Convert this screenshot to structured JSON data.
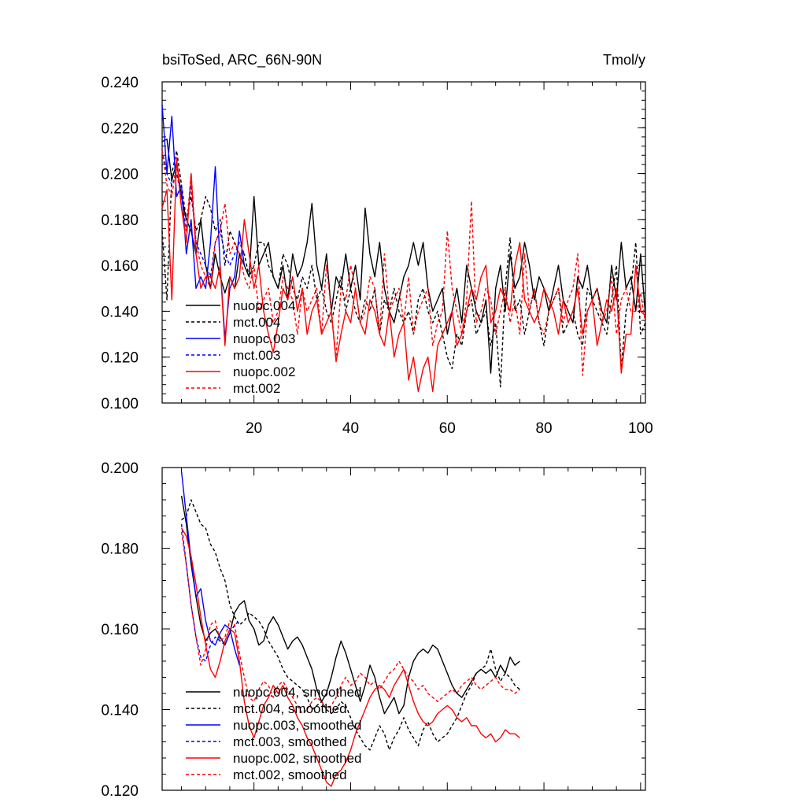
{
  "chart_data": [
    {
      "type": "line",
      "title_left": "bsiToSed, ARC_66N-90N",
      "title_right": "Tmol/y",
      "xlabel": "",
      "ylabel": "",
      "xlim": [
        1,
        101
      ],
      "ylim": [
        0.1,
        0.24
      ],
      "x_ticks": [
        20,
        40,
        60,
        80,
        100
      ],
      "x_tick_labels": [
        "20",
        "40",
        "60",
        "80",
        "100"
      ],
      "y_ticks": [
        0.1,
        0.12,
        0.14,
        0.16,
        0.18,
        0.2,
        0.22,
        0.24
      ],
      "y_tick_labels": [
        "0.100",
        "0.120",
        "0.140",
        "0.160",
        "0.180",
        "0.200",
        "0.220",
        "0.240"
      ],
      "legend_position": "bottom-left",
      "series": [
        {
          "name": "nuopc.004",
          "color": "#000000",
          "dash": "solid",
          "x_start": 1,
          "values": [
            0.214,
            0.215,
            0.197,
            0.205,
            0.19,
            0.18,
            0.175,
            0.165,
            0.18,
            0.16,
            0.15,
            0.165,
            0.155,
            0.148,
            0.155,
            0.15,
            0.165,
            0.16,
            0.155,
            0.19,
            0.16,
            0.165,
            0.17,
            0.155,
            0.15,
            0.16,
            0.145,
            0.165,
            0.155,
            0.16,
            0.17,
            0.187,
            0.16,
            0.15,
            0.165,
            0.14,
            0.155,
            0.15,
            0.165,
            0.15,
            0.16,
            0.145,
            0.185,
            0.165,
            0.155,
            0.17,
            0.15,
            0.14,
            0.135,
            0.145,
            0.155,
            0.16,
            0.17,
            0.16,
            0.17,
            0.15,
            0.14,
            0.145,
            0.15,
            0.13,
            0.14,
            0.15,
            0.135,
            0.16,
            0.15,
            0.14,
            0.135,
            0.145,
            0.113,
            0.15,
            0.16,
            0.14,
            0.165,
            0.15,
            0.155,
            0.17,
            0.16,
            0.145,
            0.155,
            0.15,
            0.14,
            0.15,
            0.16,
            0.145,
            0.14,
            0.135,
            0.155,
            0.15,
            0.16,
            0.145,
            0.15,
            0.14,
            0.135,
            0.16,
            0.145,
            0.17,
            0.15,
            0.155,
            0.14,
            0.165,
            0.138
          ]
        },
        {
          "name": "mct.004",
          "color": "#000000",
          "dash": "dashed",
          "x_start": 1,
          "values": [
            0.175,
            0.145,
            0.2,
            0.21,
            0.195,
            0.18,
            0.19,
            0.175,
            0.18,
            0.19,
            0.185,
            0.175,
            0.18,
            0.16,
            0.175,
            0.17,
            0.165,
            0.165,
            0.155,
            0.16,
            0.17,
            0.17,
            0.16,
            0.155,
            0.15,
            0.165,
            0.16,
            0.15,
            0.145,
            0.155,
            0.15,
            0.16,
            0.145,
            0.15,
            0.14,
            0.135,
            0.145,
            0.155,
            0.14,
            0.15,
            0.14,
            0.135,
            0.145,
            0.14,
            0.15,
            0.13,
            0.145,
            0.14,
            0.15,
            0.14,
            0.135,
            0.14,
            0.13,
            0.145,
            0.15,
            0.14,
            0.135,
            0.14,
            0.13,
            0.12,
            0.115,
            0.13,
            0.125,
            0.14,
            0.145,
            0.13,
            0.135,
            0.14,
            0.125,
            0.135,
            0.107,
            0.15,
            0.172,
            0.14,
            0.145,
            0.13,
            0.14,
            0.15,
            0.135,
            0.125,
            0.14,
            0.145,
            0.15,
            0.13,
            0.135,
            0.14,
            0.13,
            0.125,
            0.15,
            0.145,
            0.14,
            0.135,
            0.13,
            0.145,
            0.16,
            0.115,
            0.14,
            0.15,
            0.17,
            0.13,
            0.135
          ]
        },
        {
          "name": "nuopc.003",
          "color": "#0000ff",
          "dash": "solid",
          "x_start": 1,
          "values": [
            0.23,
            0.2,
            0.225,
            0.19,
            0.195,
            0.165,
            0.18,
            0.15,
            0.155,
            0.15,
            0.17,
            0.203,
            0.16,
            0.128,
            0.15,
            0.155,
            0.175,
            0.16
          ]
        },
        {
          "name": "mct.003",
          "color": "#0000ff",
          "dash": "dashed",
          "x_start": 1,
          "values": [
            0.21,
            0.2,
            0.195,
            0.2,
            0.19,
            0.175,
            0.195,
            0.17,
            0.165,
            0.16,
            0.155,
            0.17,
            0.175,
            0.165,
            0.16,
            0.165,
            0.17,
            0.165
          ]
        },
        {
          "name": "nuopc.002",
          "color": "#ff0000",
          "dash": "solid",
          "x_start": 1,
          "values": [
            0.185,
            0.193,
            0.145,
            0.207,
            0.185,
            0.17,
            0.2,
            0.165,
            0.15,
            0.155,
            0.155,
            0.15,
            0.16,
            0.125,
            0.155,
            0.15,
            0.155,
            0.18,
            0.165,
            0.15,
            0.16,
            0.14,
            0.13,
            0.122,
            0.135,
            0.15,
            0.145,
            0.155,
            0.14,
            0.15,
            0.13,
            0.14,
            0.145,
            0.13,
            0.135,
            0.14,
            0.118,
            0.13,
            0.14,
            0.135,
            0.15,
            0.135,
            0.13,
            0.145,
            0.14,
            0.13,
            0.125,
            0.14,
            0.12,
            0.13,
            0.135,
            0.11,
            0.12,
            0.105,
            0.115,
            0.12,
            0.105,
            0.125,
            0.13,
            0.135,
            0.14,
            0.125,
            0.13,
            0.14,
            0.15,
            0.145,
            0.155,
            0.16,
            0.135,
            0.14,
            0.15,
            0.145,
            0.14,
            0.16,
            0.17,
            0.145,
            0.14,
            0.135,
            0.14,
            0.15,
            0.145,
            0.14,
            0.13,
            0.145,
            0.135,
            0.14,
            0.15,
            0.13,
            0.14,
            0.145,
            0.125,
            0.135,
            0.145,
            0.14,
            0.15,
            0.113,
            0.13,
            0.13,
            0.16,
            0.14,
            0.138
          ]
        },
        {
          "name": "mct.002",
          "color": "#ff0000",
          "dash": "dashed",
          "x_start": 1,
          "values": [
            0.21,
            0.195,
            0.19,
            0.205,
            0.185,
            0.175,
            0.2,
            0.17,
            0.16,
            0.155,
            0.15,
            0.17,
            0.175,
            0.187,
            0.165,
            0.17,
            0.165,
            0.155,
            0.15,
            0.16,
            0.14,
            0.145,
            0.15,
            0.135,
            0.14,
            0.155,
            0.15,
            0.145,
            0.13,
            0.15,
            0.14,
            0.145,
            0.15,
            0.13,
            0.16,
            0.14,
            0.12,
            0.15,
            0.145,
            0.16,
            0.15,
            0.135,
            0.14,
            0.155,
            0.15,
            0.13,
            0.165,
            0.14,
            0.145,
            0.15,
            0.135,
            0.155,
            0.13,
            0.14,
            0.145,
            0.15,
            0.125,
            0.135,
            0.14,
            0.175,
            0.15,
            0.14,
            0.13,
            0.145,
            0.188,
            0.135,
            0.14,
            0.15,
            0.145,
            0.13,
            0.14,
            0.15,
            0.135,
            0.145,
            0.13,
            0.165,
            0.14,
            0.15,
            0.135,
            0.13,
            0.14,
            0.145,
            0.15,
            0.135,
            0.145,
            0.15,
            0.165,
            0.112,
            0.14,
            0.145,
            0.15,
            0.135,
            0.14,
            0.155,
            0.13,
            0.145,
            0.15,
            0.14,
            0.14,
            0.148,
            0.135
          ]
        }
      ]
    },
    {
      "type": "line",
      "title_left": "",
      "title_right": "",
      "xlabel": "",
      "ylabel": "",
      "xlim": [
        1,
        101
      ],
      "ylim": [
        0.12,
        0.2
      ],
      "x_ticks": [
        20,
        40,
        60,
        80,
        100
      ],
      "x_tick_labels": [],
      "y_ticks": [
        0.12,
        0.14,
        0.16,
        0.18,
        0.2
      ],
      "y_tick_labels": [
        "0.120",
        "0.140",
        "0.160",
        "0.180",
        "0.200"
      ],
      "legend_position": "bottom-left",
      "series": [
        {
          "name": "nuopc.004, smoothed",
          "color": "#000000",
          "dash": "solid",
          "x_start": 5,
          "values": [
            0.193,
            0.186,
            0.176,
            0.168,
            0.161,
            0.157,
            0.159,
            0.16,
            0.158,
            0.156,
            0.159,
            0.164,
            0.166,
            0.167,
            0.162,
            0.16,
            0.156,
            0.157,
            0.161,
            0.163,
            0.161,
            0.158,
            0.155,
            0.157,
            0.158,
            0.156,
            0.153,
            0.15,
            0.145,
            0.142,
            0.144,
            0.148,
            0.153,
            0.157,
            0.154,
            0.15,
            0.146,
            0.142,
            0.146,
            0.151,
            0.148,
            0.143,
            0.139,
            0.141,
            0.143,
            0.139,
            0.141,
            0.148,
            0.152,
            0.154,
            0.155,
            0.154,
            0.156,
            0.155,
            0.152,
            0.149,
            0.146,
            0.144,
            0.143,
            0.145,
            0.147,
            0.149,
            0.15,
            0.149,
            0.15,
            0.148,
            0.151,
            0.149,
            0.153,
            0.151,
            0.152
          ]
        },
        {
          "name": "mct.004, smoothed",
          "color": "#000000",
          "dash": "dashed",
          "x_start": 5,
          "values": [
            0.187,
            0.188,
            0.192,
            0.189,
            0.186,
            0.185,
            0.181,
            0.179,
            0.175,
            0.172,
            0.166,
            0.163,
            0.161,
            0.162,
            0.164,
            0.163,
            0.162,
            0.16,
            0.157,
            0.155,
            0.153,
            0.15,
            0.148,
            0.147,
            0.146,
            0.145,
            0.143,
            0.14,
            0.141,
            0.142,
            0.14,
            0.139,
            0.14,
            0.142,
            0.141,
            0.138,
            0.135,
            0.133,
            0.131,
            0.13,
            0.133,
            0.136,
            0.134,
            0.13,
            0.133,
            0.135,
            0.138,
            0.135,
            0.133,
            0.131,
            0.135,
            0.137,
            0.134,
            0.132,
            0.133,
            0.134,
            0.136,
            0.138,
            0.141,
            0.144,
            0.146,
            0.149,
            0.15,
            0.151,
            0.155,
            0.15,
            0.147,
            0.149,
            0.148,
            0.146,
            0.145
          ]
        },
        {
          "name": "nuopc.003, smoothed",
          "color": "#0000ff",
          "dash": "solid",
          "x_start": 5,
          "values": [
            0.199,
            0.188,
            0.177,
            0.168,
            0.17,
            0.162,
            0.157,
            0.156,
            0.159,
            0.161,
            0.16,
            0.155,
            0.151
          ]
        },
        {
          "name": "mct.003, smoothed",
          "color": "#0000ff",
          "dash": "dashed",
          "x_start": 5,
          "values": [
            0.186,
            0.176,
            0.166,
            0.158,
            0.153,
            0.152,
            0.156,
            0.158,
            0.157,
            0.156,
            0.159,
            0.161,
            0.162
          ]
        },
        {
          "name": "nuopc.002, smoothed",
          "color": "#ff0000",
          "dash": "solid",
          "x_start": 5,
          "values": [
            0.185,
            0.183,
            0.178,
            0.171,
            0.163,
            0.156,
            0.15,
            0.148,
            0.152,
            0.157,
            0.16,
            0.159,
            0.152,
            0.142,
            0.136,
            0.133,
            0.137,
            0.141,
            0.143,
            0.146,
            0.144,
            0.146,
            0.143,
            0.141,
            0.138,
            0.136,
            0.133,
            0.131,
            0.128,
            0.125,
            0.122,
            0.121,
            0.124,
            0.125,
            0.127,
            0.13,
            0.134,
            0.137,
            0.14,
            0.143,
            0.145,
            0.146,
            0.145,
            0.143,
            0.146,
            0.148,
            0.15,
            0.146,
            0.142,
            0.139,
            0.137,
            0.136,
            0.137,
            0.139,
            0.14,
            0.141,
            0.14,
            0.138,
            0.137,
            0.138,
            0.136,
            0.136,
            0.134,
            0.133,
            0.134,
            0.132,
            0.133,
            0.135,
            0.134,
            0.134,
            0.133
          ]
        },
        {
          "name": "mct.002, smoothed",
          "color": "#ff0000",
          "dash": "dashed",
          "x_start": 5,
          "values": [
            0.184,
            0.176,
            0.166,
            0.158,
            0.151,
            0.155,
            0.161,
            0.162,
            0.157,
            0.158,
            0.162,
            0.161,
            0.154,
            0.148,
            0.143,
            0.142,
            0.145,
            0.147,
            0.146,
            0.143,
            0.146,
            0.147,
            0.145,
            0.143,
            0.141,
            0.139,
            0.14,
            0.142,
            0.143,
            0.142,
            0.14,
            0.141,
            0.143,
            0.146,
            0.148,
            0.146,
            0.147,
            0.149,
            0.148,
            0.146,
            0.147,
            0.145,
            0.147,
            0.149,
            0.15,
            0.152,
            0.15,
            0.148,
            0.147,
            0.145,
            0.146,
            0.144,
            0.143,
            0.142,
            0.143,
            0.144,
            0.145,
            0.144,
            0.146,
            0.147,
            0.148,
            0.146,
            0.145,
            0.146,
            0.147,
            0.148,
            0.146,
            0.145,
            0.145,
            0.144,
            0.145
          ]
        }
      ]
    }
  ]
}
